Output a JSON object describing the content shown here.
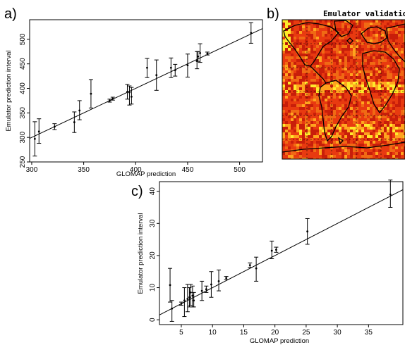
{
  "panel_labels": [
    "a)",
    "b)",
    "c)"
  ],
  "map_panel": {
    "title": "Emulator validationCC",
    "colors": {
      "background": "#e83a10",
      "dark": "#c81e0a",
      "mid": "#f06a14",
      "light": "#ffa41e",
      "bright": "#ffe92a",
      "coast": "#000000"
    }
  },
  "chart_data": [
    {
      "type": "scatter",
      "panel": "a)",
      "xlabel": "GLOMAP prediction",
      "ylabel": "Emulator prediction interval",
      "xlim": [
        298,
        522
      ],
      "ylim": [
        250,
        540
      ],
      "xticks": [
        300,
        350,
        400,
        450,
        500
      ],
      "yticks": [
        250,
        300,
        350,
        400,
        450,
        500
      ],
      "grid": false,
      "reference_line": [
        [
          298,
          298
        ],
        [
          522,
          522
        ]
      ],
      "points": [
        {
          "x": 303,
          "y": 297,
          "lo": 262,
          "hi": 332
        },
        {
          "x": 307,
          "y": 312,
          "lo": 288,
          "hi": 338
        },
        {
          "x": 322,
          "y": 322,
          "lo": 316,
          "hi": 328
        },
        {
          "x": 341,
          "y": 331,
          "lo": 310,
          "hi": 352
        },
        {
          "x": 346,
          "y": 355,
          "lo": 336,
          "hi": 375
        },
        {
          "x": 357,
          "y": 389,
          "lo": 360,
          "hi": 418
        },
        {
          "x": 375,
          "y": 375,
          "lo": 372,
          "hi": 378
        },
        {
          "x": 378,
          "y": 379,
          "lo": 376,
          "hi": 382
        },
        {
          "x": 392,
          "y": 393,
          "lo": 378,
          "hi": 408
        },
        {
          "x": 394,
          "y": 392,
          "lo": 366,
          "hi": 405
        },
        {
          "x": 396,
          "y": 383,
          "lo": 368,
          "hi": 402
        },
        {
          "x": 411,
          "y": 442,
          "lo": 422,
          "hi": 461
        },
        {
          "x": 420,
          "y": 427,
          "lo": 396,
          "hi": 458
        },
        {
          "x": 434,
          "y": 442,
          "lo": 422,
          "hi": 462
        },
        {
          "x": 438,
          "y": 437,
          "lo": 425,
          "hi": 449
        },
        {
          "x": 450,
          "y": 447,
          "lo": 423,
          "hi": 470
        },
        {
          "x": 459,
          "y": 456,
          "lo": 440,
          "hi": 475
        },
        {
          "x": 460,
          "y": 465,
          "lo": 455,
          "hi": 475
        },
        {
          "x": 462,
          "y": 472,
          "lo": 453,
          "hi": 491
        },
        {
          "x": 469,
          "y": 471,
          "lo": 468,
          "hi": 474
        },
        {
          "x": 511,
          "y": 513,
          "lo": 492,
          "hi": 534
        }
      ]
    },
    {
      "type": "scatter",
      "panel": "c)",
      "xlabel": "GLOMAP prediction",
      "ylabel": "Emulator prediction interval",
      "xlim": [
        1.5,
        40.5
      ],
      "ylim": [
        -1.5,
        43
      ],
      "xticks": [
        5,
        10,
        15,
        20,
        25,
        30,
        35
      ],
      "yticks": [
        0,
        10,
        20,
        30,
        40
      ],
      "grid": false,
      "reference_line": [
        [
          1.5,
          1.5
        ],
        [
          40.5,
          40.5
        ]
      ],
      "points": [
        {
          "x": 3.2,
          "y": 10.8,
          "lo": 5.5,
          "hi": 16.0
        },
        {
          "x": 3.5,
          "y": 3.5,
          "lo": -0.5,
          "hi": 6.0
        },
        {
          "x": 5.0,
          "y": 5.0,
          "lo": 4.5,
          "hi": 5.5
        },
        {
          "x": 5.5,
          "y": 6.0,
          "lo": 1.0,
          "hi": 10.0
        },
        {
          "x": 6.0,
          "y": 6.5,
          "lo": 2.5,
          "hi": 11.0
        },
        {
          "x": 6.3,
          "y": 7.0,
          "lo": 4.0,
          "hi": 10.0
        },
        {
          "x": 6.5,
          "y": 8.5,
          "lo": 4.5,
          "hi": 11.0
        },
        {
          "x": 6.8,
          "y": 7.5,
          "lo": 4.0,
          "hi": 10.5
        },
        {
          "x": 7.0,
          "y": 6.0,
          "lo": 4.0,
          "hi": 8.5
        },
        {
          "x": 8.3,
          "y": 9.0,
          "lo": 6.0,
          "hi": 12.0
        },
        {
          "x": 9.0,
          "y": 9.5,
          "lo": 8.5,
          "hi": 10.5
        },
        {
          "x": 9.8,
          "y": 11.0,
          "lo": 7.0,
          "hi": 15.0
        },
        {
          "x": 11.0,
          "y": 12.0,
          "lo": 9.0,
          "hi": 15.5
        },
        {
          "x": 12.2,
          "y": 13.0,
          "lo": 12.5,
          "hi": 13.5
        },
        {
          "x": 16.0,
          "y": 17.0,
          "lo": 16.3,
          "hi": 17.7
        },
        {
          "x": 17.0,
          "y": 16.0,
          "lo": 12.0,
          "hi": 19.5
        },
        {
          "x": 19.5,
          "y": 21.5,
          "lo": 19.0,
          "hi": 24.5
        },
        {
          "x": 20.2,
          "y": 21.8,
          "lo": 21.0,
          "hi": 22.6
        },
        {
          "x": 25.2,
          "y": 27.5,
          "lo": 23.5,
          "hi": 31.5
        },
        {
          "x": 38.5,
          "y": 39.0,
          "lo": 35.0,
          "hi": 43.5
        }
      ]
    }
  ]
}
